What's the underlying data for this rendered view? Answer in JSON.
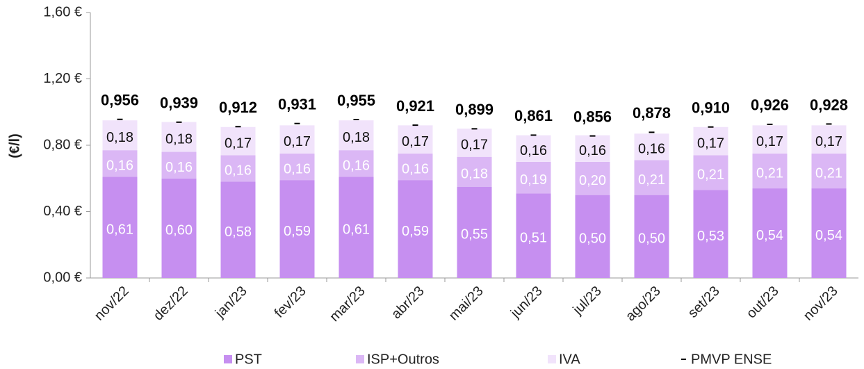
{
  "chart_data": {
    "type": "bar",
    "stacked": true,
    "ylabel": "(€/l)",
    "categories": [
      "nov/22",
      "dez/22",
      "jan/23",
      "fev/23",
      "mar/23",
      "abr/23",
      "mai/23",
      "jun/23",
      "jul/23",
      "ago/23",
      "set/23",
      "out/23",
      "nov/23"
    ],
    "ylim": [
      0,
      1.6
    ],
    "yticks": [
      {
        "value": 0,
        "label": "0,00 €"
      },
      {
        "value": 0.4,
        "label": "0,40 €"
      },
      {
        "value": 0.8,
        "label": "0,80 €"
      },
      {
        "value": 1.2,
        "label": "1,20 €"
      },
      {
        "value": 1.6,
        "label": "1,60 €"
      }
    ],
    "series": [
      {
        "name": "PST",
        "color": "#c68ff0",
        "label_color": "#ffffff",
        "values": [
          0.61,
          0.6,
          0.58,
          0.59,
          0.61,
          0.59,
          0.55,
          0.51,
          0.5,
          0.5,
          0.53,
          0.54,
          0.54
        ],
        "value_labels": [
          "0,61",
          "0,60",
          "0,58",
          "0,59",
          "0,61",
          "0,59",
          "0,55",
          "0,51",
          "0,50",
          "0,50",
          "0,53",
          "0,54",
          "0,54"
        ]
      },
      {
        "name": "ISP+Outros",
        "color": "#dbb7f5",
        "label_color": "#ffffff",
        "values": [
          0.16,
          0.16,
          0.16,
          0.16,
          0.16,
          0.16,
          0.18,
          0.19,
          0.2,
          0.21,
          0.21,
          0.21,
          0.21
        ],
        "value_labels": [
          "0,16",
          "0,16",
          "0,16",
          "0,16",
          "0,16",
          "0,16",
          "0,18",
          "0,19",
          "0,20",
          "0,21",
          "0,21",
          "0,21",
          "0,21"
        ]
      },
      {
        "name": "IVA",
        "color": "#f1e3fb",
        "label_color": "#111111",
        "values": [
          0.18,
          0.18,
          0.17,
          0.17,
          0.18,
          0.17,
          0.17,
          0.16,
          0.16,
          0.16,
          0.17,
          0.17,
          0.17
        ],
        "value_labels": [
          "0,18",
          "0,18",
          "0,17",
          "0,17",
          "0,18",
          "0,17",
          "0,17",
          "0,16",
          "0,16",
          "0,16",
          "0,17",
          "0,17",
          "0,17"
        ]
      },
      {
        "name": "PMVP ENSE",
        "type": "marker",
        "marker": "dash",
        "color": "#000000",
        "label_color": "#000000",
        "values": [
          0.956,
          0.939,
          0.912,
          0.931,
          0.955,
          0.921,
          0.899,
          0.861,
          0.856,
          0.878,
          0.91,
          0.926,
          0.928
        ],
        "value_labels": [
          "0,956",
          "0,939",
          "0,912",
          "0,931",
          "0,955",
          "0,921",
          "0,899",
          "0,861",
          "0,856",
          "0,878",
          "0,910",
          "0,926",
          "0,928"
        ]
      }
    ]
  }
}
